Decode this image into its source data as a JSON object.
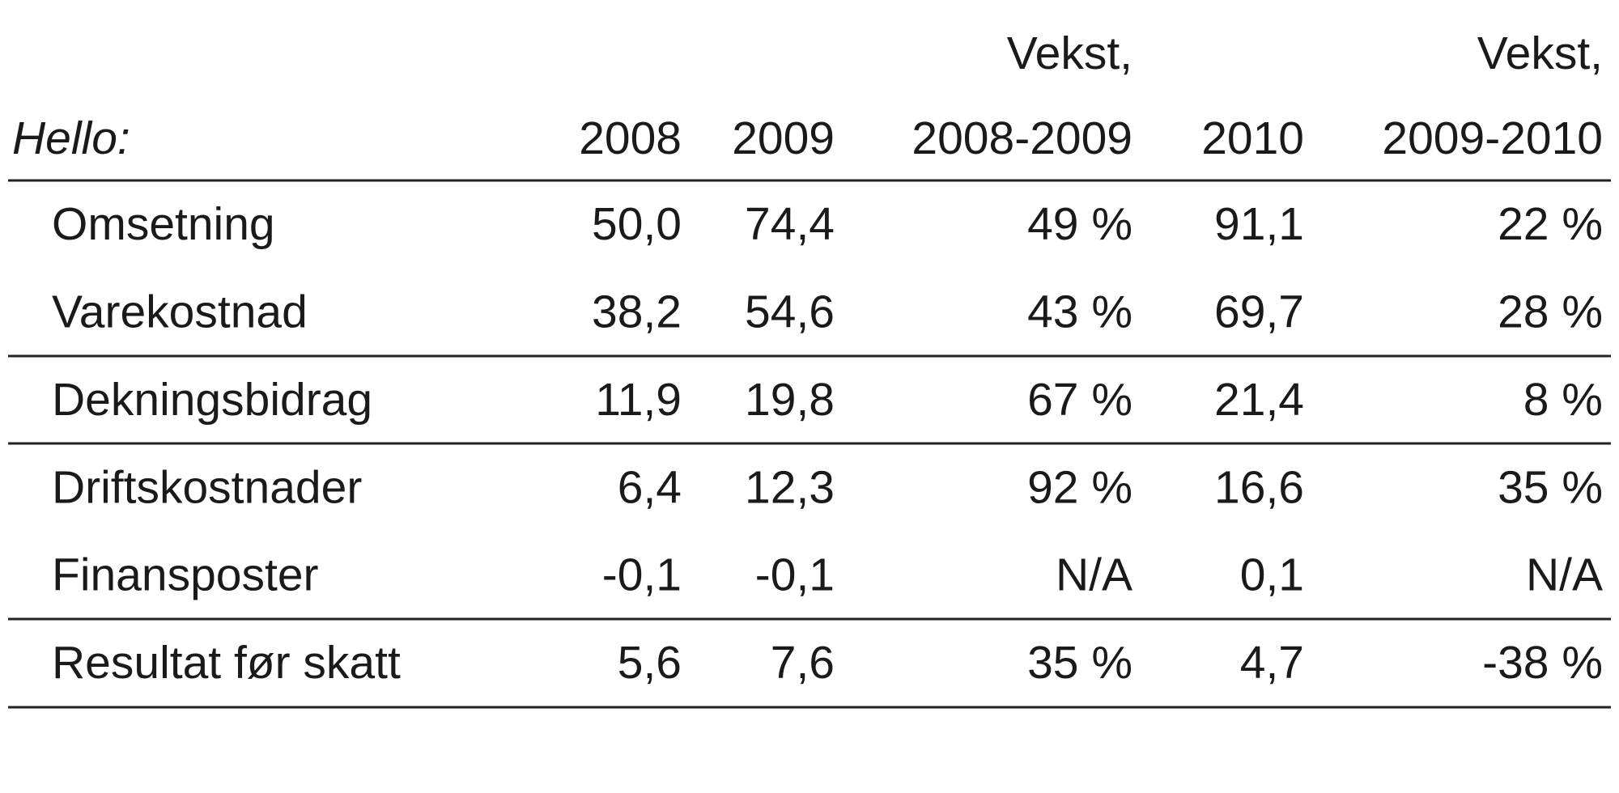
{
  "header": {
    "label": "Hello:",
    "columns": [
      [
        "2008"
      ],
      [
        "2009"
      ],
      [
        "Vekst,",
        "2008-2009"
      ],
      [
        "2010"
      ],
      [
        "Vekst,",
        "2009-2010"
      ]
    ]
  },
  "table": {
    "rows": [
      [
        "Omsetning",
        "50,0",
        "74,4",
        "49 %",
        "91,1",
        "22 %"
      ],
      [
        "Varekostnad",
        "38,2",
        "54,6",
        "43 %",
        "69,7",
        "28 %"
      ],
      [
        "Dekningsbidrag",
        "11,9",
        "19,8",
        "67 %",
        "21,4",
        "8 %"
      ],
      [
        "Driftskostnader",
        "6,4",
        "12,3",
        "92 %",
        "16,6",
        "35 %"
      ],
      [
        "Finansposter",
        "-0,1",
        "-0,1",
        "N/A",
        "0,1",
        "N/A"
      ],
      [
        "Resultat før skatt",
        "5,6",
        "7,6",
        "35 %",
        "4,7",
        "-38 %"
      ]
    ]
  }
}
